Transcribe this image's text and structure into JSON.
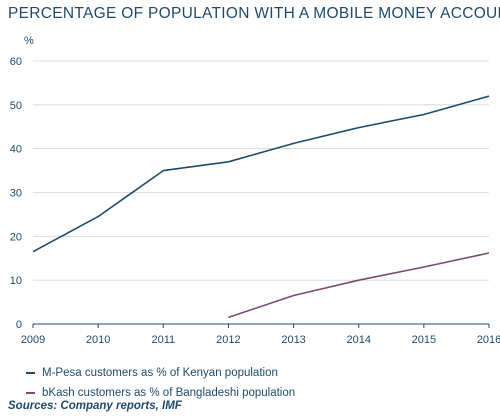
{
  "chart_data": {
    "type": "line",
    "title": "PERCENTAGE OF POPULATION WITH A MOBILE MONEY ACCOUNT",
    "ylabel": "%",
    "xlabel": "",
    "ylim": [
      0,
      60
    ],
    "yticks": [
      "0",
      "10",
      "20",
      "30",
      "40",
      "50",
      "60"
    ],
    "x": [
      "2009",
      "2010",
      "2011",
      "2012",
      "2013",
      "2014",
      "2015",
      "2016"
    ],
    "grid": true,
    "legend_position": "bottom",
    "series": [
      {
        "name": "M-Pesa customers as % of Kenyan population",
        "color": "#1f4a6b",
        "values": [
          16.5,
          24.5,
          35.0,
          37.0,
          41.2,
          44.8,
          47.8,
          52.0
        ]
      },
      {
        "name": "bKash customers as % of Bangladeshi population",
        "color": "#7a4a73",
        "values": [
          null,
          null,
          null,
          1.5,
          6.5,
          10.0,
          13.0,
          16.2
        ]
      }
    ],
    "source": "Sources: Company reports, IMF"
  }
}
